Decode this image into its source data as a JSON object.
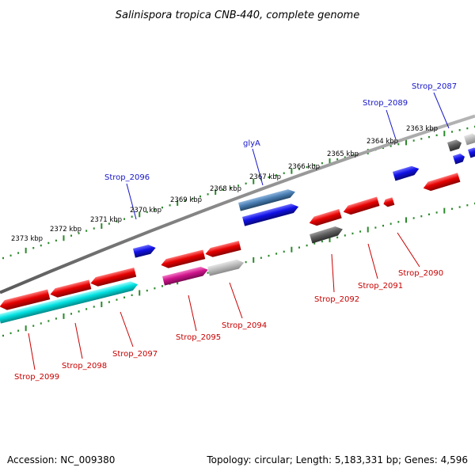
{
  "title": "Salinispora tropica CNB-440, complete genome",
  "accession": "Accession: NC_009380",
  "topology": "Topology: circular; Length: 5,183,331 bp; Genes: 4,596",
  "colors": {
    "backbone": "#8a8a8a",
    "tick": "#2a8a2a",
    "label_forward": "#1515c8",
    "label_reverse": "#c80000",
    "gene_red": "#e60000",
    "gene_blue": "#1010e6",
    "gene_steelblue": "#4a7fb5",
    "gene_cyan": "#00e0e0",
    "gene_magenta": "#d0148c",
    "gene_gray": "#bdbdbd",
    "gene_darkgray": "#5e5e5e"
  },
  "ticks": [
    {
      "label": "2373 kbp"
    },
    {
      "label": "2372 kbp"
    },
    {
      "label": "2371 kbp"
    },
    {
      "label": "2370 kbp"
    },
    {
      "label": "2369 kbp"
    },
    {
      "label": "2368 kbp"
    },
    {
      "label": "2367 kbp"
    },
    {
      "label": "2366 kbp"
    },
    {
      "label": "2365 kbp"
    },
    {
      "label": "2364 kbp"
    },
    {
      "label": "2363 kbp"
    }
  ],
  "gene_labels_top": [
    {
      "label": "Strop_2096"
    },
    {
      "label": "glyA"
    },
    {
      "label": "Strop_2089"
    },
    {
      "label": "Strop_2087"
    }
  ],
  "gene_labels_bottom": [
    {
      "label": "Strop_2099"
    },
    {
      "label": "Strop_2098"
    },
    {
      "label": "Strop_2097"
    },
    {
      "label": "Strop_2095"
    },
    {
      "label": "Strop_2094"
    },
    {
      "label": "Strop_2092"
    },
    {
      "label": "Strop_2091"
    },
    {
      "label": "Strop_2090"
    }
  ]
}
